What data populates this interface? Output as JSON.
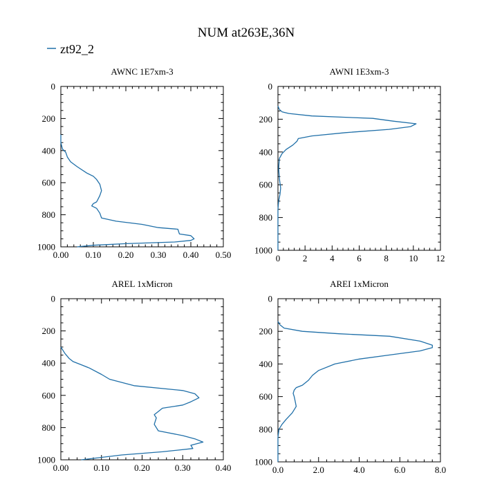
{
  "figure": {
    "title": "NUM at263E,36N",
    "legend": {
      "entries": [
        "zt92_2"
      ],
      "placement": "top-left"
    }
  },
  "colors": {
    "series": "#1f6fa8",
    "axes": "#000000"
  },
  "chart_data": [
    {
      "type": "line",
      "title": "AWNC  1E7xm-3",
      "xlim": [
        0,
        0.5
      ],
      "ylim": [
        1000,
        0
      ],
      "x_ticks": [
        "0.00",
        "0.10",
        "0.20",
        "0.30",
        "0.40",
        "0.50"
      ],
      "y_ticks": [
        "0",
        "200",
        "400",
        "600",
        "800",
        "1000"
      ],
      "series": [
        {
          "name": "zt92_2",
          "x": [
            0,
            0,
            0.005,
            0.015,
            0.02,
            0.03,
            0.05,
            0.08,
            0.1,
            0.11,
            0.12,
            0.125,
            0.12,
            0.115,
            0.11,
            0.1,
            0.095,
            0.11,
            0.12,
            0.125,
            0.17,
            0.25,
            0.3,
            0.36,
            0.365,
            0.4,
            0.41,
            0.4,
            0.35,
            0.2,
            0.1,
            0.05
          ],
          "y": [
            300,
            350,
            390,
            410,
            440,
            470,
            500,
            540,
            560,
            580,
            610,
            650,
            680,
            700,
            720,
            730,
            745,
            760,
            790,
            820,
            840,
            860,
            880,
            890,
            920,
            930,
            950,
            960,
            970,
            980,
            990,
            1000
          ]
        }
      ]
    },
    {
      "type": "line",
      "title": "AWNI  1E3xm-3",
      "xlim": [
        0,
        12
      ],
      "ylim": [
        1000,
        0
      ],
      "x_ticks": [
        "0",
        "2",
        "4",
        "6",
        "8",
        "10",
        "12"
      ],
      "y_ticks": [
        "0",
        "200",
        "400",
        "600",
        "800",
        "1000"
      ],
      "series": [
        {
          "name": "zt92_2",
          "x": [
            0,
            0.1,
            0.3,
            0.8,
            2.5,
            7,
            8.5,
            10.2,
            9.8,
            8.2,
            5,
            2.5,
            1.5,
            1.4,
            1.1,
            0.6,
            0.3,
            0.1,
            0.05,
            0.1,
            0.2,
            0.15,
            0.05,
            0,
            0
          ],
          "y": [
            120,
            140,
            155,
            165,
            180,
            195,
            212,
            228,
            245,
            262,
            282,
            302,
            318,
            335,
            358,
            385,
            410,
            440,
            500,
            560,
            620,
            660,
            700,
            750,
            1000
          ]
        }
      ]
    },
    {
      "type": "line",
      "title": "AREL  1xMicron",
      "xlim": [
        0,
        0.4
      ],
      "ylim": [
        1000,
        0
      ],
      "x_ticks": [
        "0.00",
        "0.10",
        "0.20",
        "0.30",
        "0.40"
      ],
      "y_ticks": [
        "0",
        "200",
        "400",
        "600",
        "800",
        "1000"
      ],
      "series": [
        {
          "name": "zt92_2",
          "x": [
            0,
            0.01,
            0.02,
            0.03,
            0.05,
            0.07,
            0.1,
            0.12,
            0.18,
            0.3,
            0.33,
            0.34,
            0.32,
            0.3,
            0.25,
            0.24,
            0.23,
            0.235,
            0.23,
            0.24,
            0.3,
            0.33,
            0.35,
            0.32,
            0.325,
            0.25,
            0.15,
            0.1,
            0.05
          ],
          "y": [
            300,
            340,
            370,
            390,
            410,
            430,
            470,
            500,
            540,
            570,
            590,
            615,
            640,
            660,
            680,
            700,
            720,
            740,
            780,
            820,
            850,
            870,
            890,
            910,
            930,
            950,
            970,
            985,
            1000
          ]
        }
      ]
    },
    {
      "type": "line",
      "title": "AREI  1xMicron",
      "xlim": [
        0,
        8
      ],
      "ylim": [
        1000,
        0
      ],
      "x_ticks": [
        "0.0",
        "2.0",
        "4.0",
        "6.0",
        "8.0"
      ],
      "y_ticks": [
        "0",
        "200",
        "400",
        "600",
        "800",
        "1000"
      ],
      "series": [
        {
          "name": "zt92_2",
          "x": [
            0,
            0.1,
            0.3,
            1.2,
            3,
            5.5,
            7,
            7.6,
            7.6,
            7,
            5.5,
            4,
            2.8,
            2,
            1.7,
            1.5,
            1.2,
            0.9,
            0.8,
            0.75,
            0.8,
            0.85,
            0.9,
            0.7,
            0.4,
            0.2,
            0.05,
            0,
            0
          ],
          "y": [
            140,
            160,
            180,
            200,
            215,
            230,
            260,
            285,
            300,
            320,
            345,
            370,
            400,
            440,
            470,
            500,
            530,
            545,
            560,
            580,
            600,
            630,
            660,
            700,
            740,
            770,
            800,
            850,
            1000
          ]
        }
      ]
    }
  ]
}
